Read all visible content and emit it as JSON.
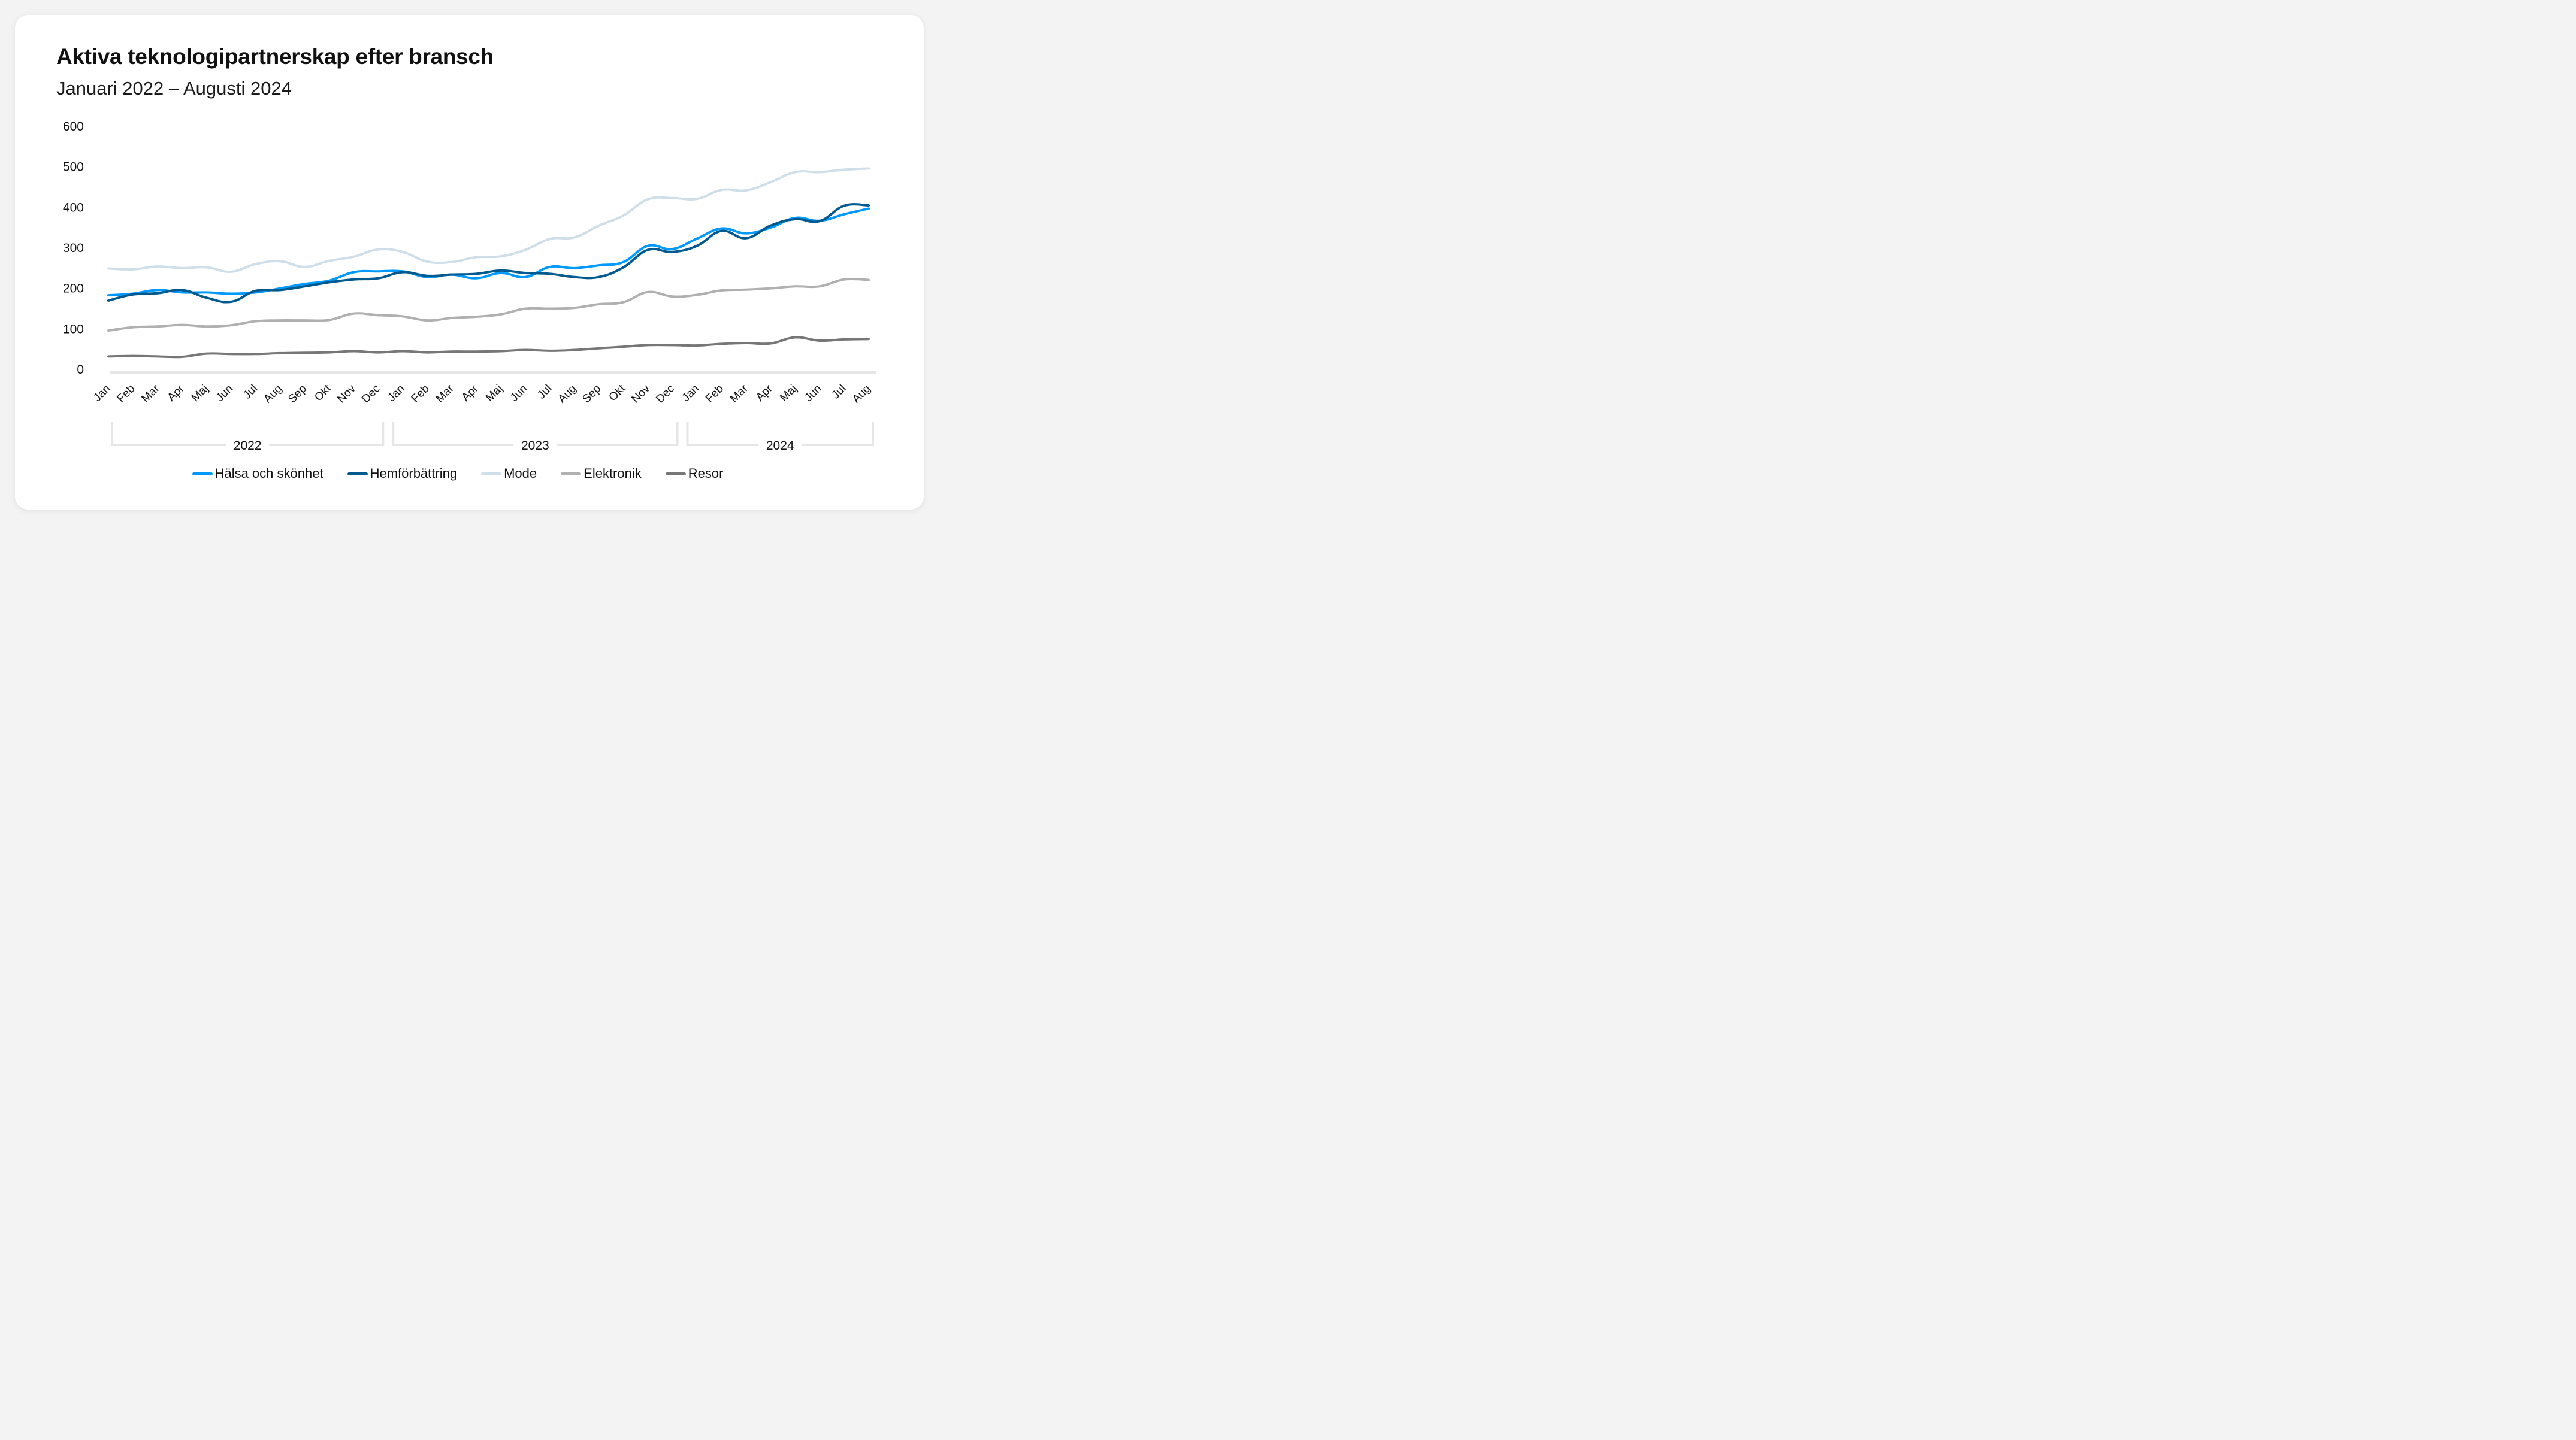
{
  "title": "Aktiva teknologipartnerskap efter bransch",
  "subtitle": "Januari 2022 – Augusti 2024",
  "chart_data": {
    "type": "line",
    "title": "Aktiva teknologipartnerskap efter bransch",
    "subtitle": "Januari 2022 – Augusti 2024",
    "xlabel": "",
    "ylabel": "",
    "ylim": [
      0,
      600
    ],
    "yticks": [
      0,
      100,
      200,
      300,
      400,
      500,
      600
    ],
    "grid": false,
    "legend_position": "bottom-center",
    "categories": [
      "Jan",
      "Feb",
      "Mar",
      "Apr",
      "Maj",
      "Jun",
      "Jul",
      "Aug",
      "Sep",
      "Okt",
      "Nov",
      "Dec",
      "Jan",
      "Feb",
      "Mar",
      "Apr",
      "Maj",
      "Jun",
      "Jul",
      "Aug",
      "Sep",
      "Okt",
      "Nov",
      "Dec",
      "Jan",
      "Feb",
      "Mar",
      "Apr",
      "Maj",
      "Jun",
      "Jul",
      "Aug"
    ],
    "year_groups": [
      {
        "label": "2022",
        "start": 0,
        "end": 11
      },
      {
        "label": "2023",
        "start": 12,
        "end": 23
      },
      {
        "label": "2024",
        "start": 24,
        "end": 31
      }
    ],
    "series": [
      {
        "name": "Hälsa och skönhet",
        "color": "#0099ff",
        "values": [
          183,
          187,
          196,
          190,
          190,
          187,
          190,
          200,
          211,
          219,
          240,
          242,
          242,
          228,
          234,
          225,
          238,
          228,
          253,
          250,
          257,
          265,
          305,
          297,
          323,
          348,
          336,
          350,
          374,
          367,
          383,
          397
        ]
      },
      {
        "name": "Hemförbättring",
        "color": "#005a8f",
        "values": [
          170,
          185,
          188,
          196,
          177,
          167,
          194,
          196,
          205,
          215,
          222,
          225,
          240,
          231,
          234,
          236,
          244,
          238,
          236,
          228,
          228,
          252,
          295,
          290,
          305,
          342,
          324,
          355,
          371,
          366,
          404,
          405
        ]
      },
      {
        "name": "Mode",
        "color": "#cfdfea",
        "values": [
          249,
          247,
          254,
          250,
          252,
          241,
          260,
          267,
          253,
          268,
          278,
          296,
          290,
          266,
          265,
          277,
          279,
          295,
          322,
          326,
          355,
          380,
          420,
          423,
          421,
          443,
          442,
          462,
          487,
          487,
          493,
          496
        ]
      },
      {
        "name": "Elektronik",
        "color": "#b0b0b0",
        "values": [
          96,
          104,
          106,
          110,
          106,
          109,
          119,
          121,
          121,
          122,
          138,
          134,
          131,
          121,
          127,
          130,
          136,
          150,
          150,
          152,
          161,
          166,
          191,
          180,
          184,
          195,
          197,
          200,
          205,
          205,
          222,
          221
        ]
      },
      {
        "name": "Resor",
        "color": "#777777",
        "values": [
          32,
          33,
          32,
          31,
          39,
          38,
          38,
          40,
          41,
          42,
          45,
          42,
          45,
          42,
          44,
          44,
          45,
          48,
          46,
          48,
          52,
          56,
          60,
          60,
          59,
          63,
          65,
          64,
          79,
          71,
          74,
          75
        ]
      }
    ]
  },
  "colors": {
    "axis": "#e6e6e6",
    "bracket": "#e6e6e6"
  }
}
